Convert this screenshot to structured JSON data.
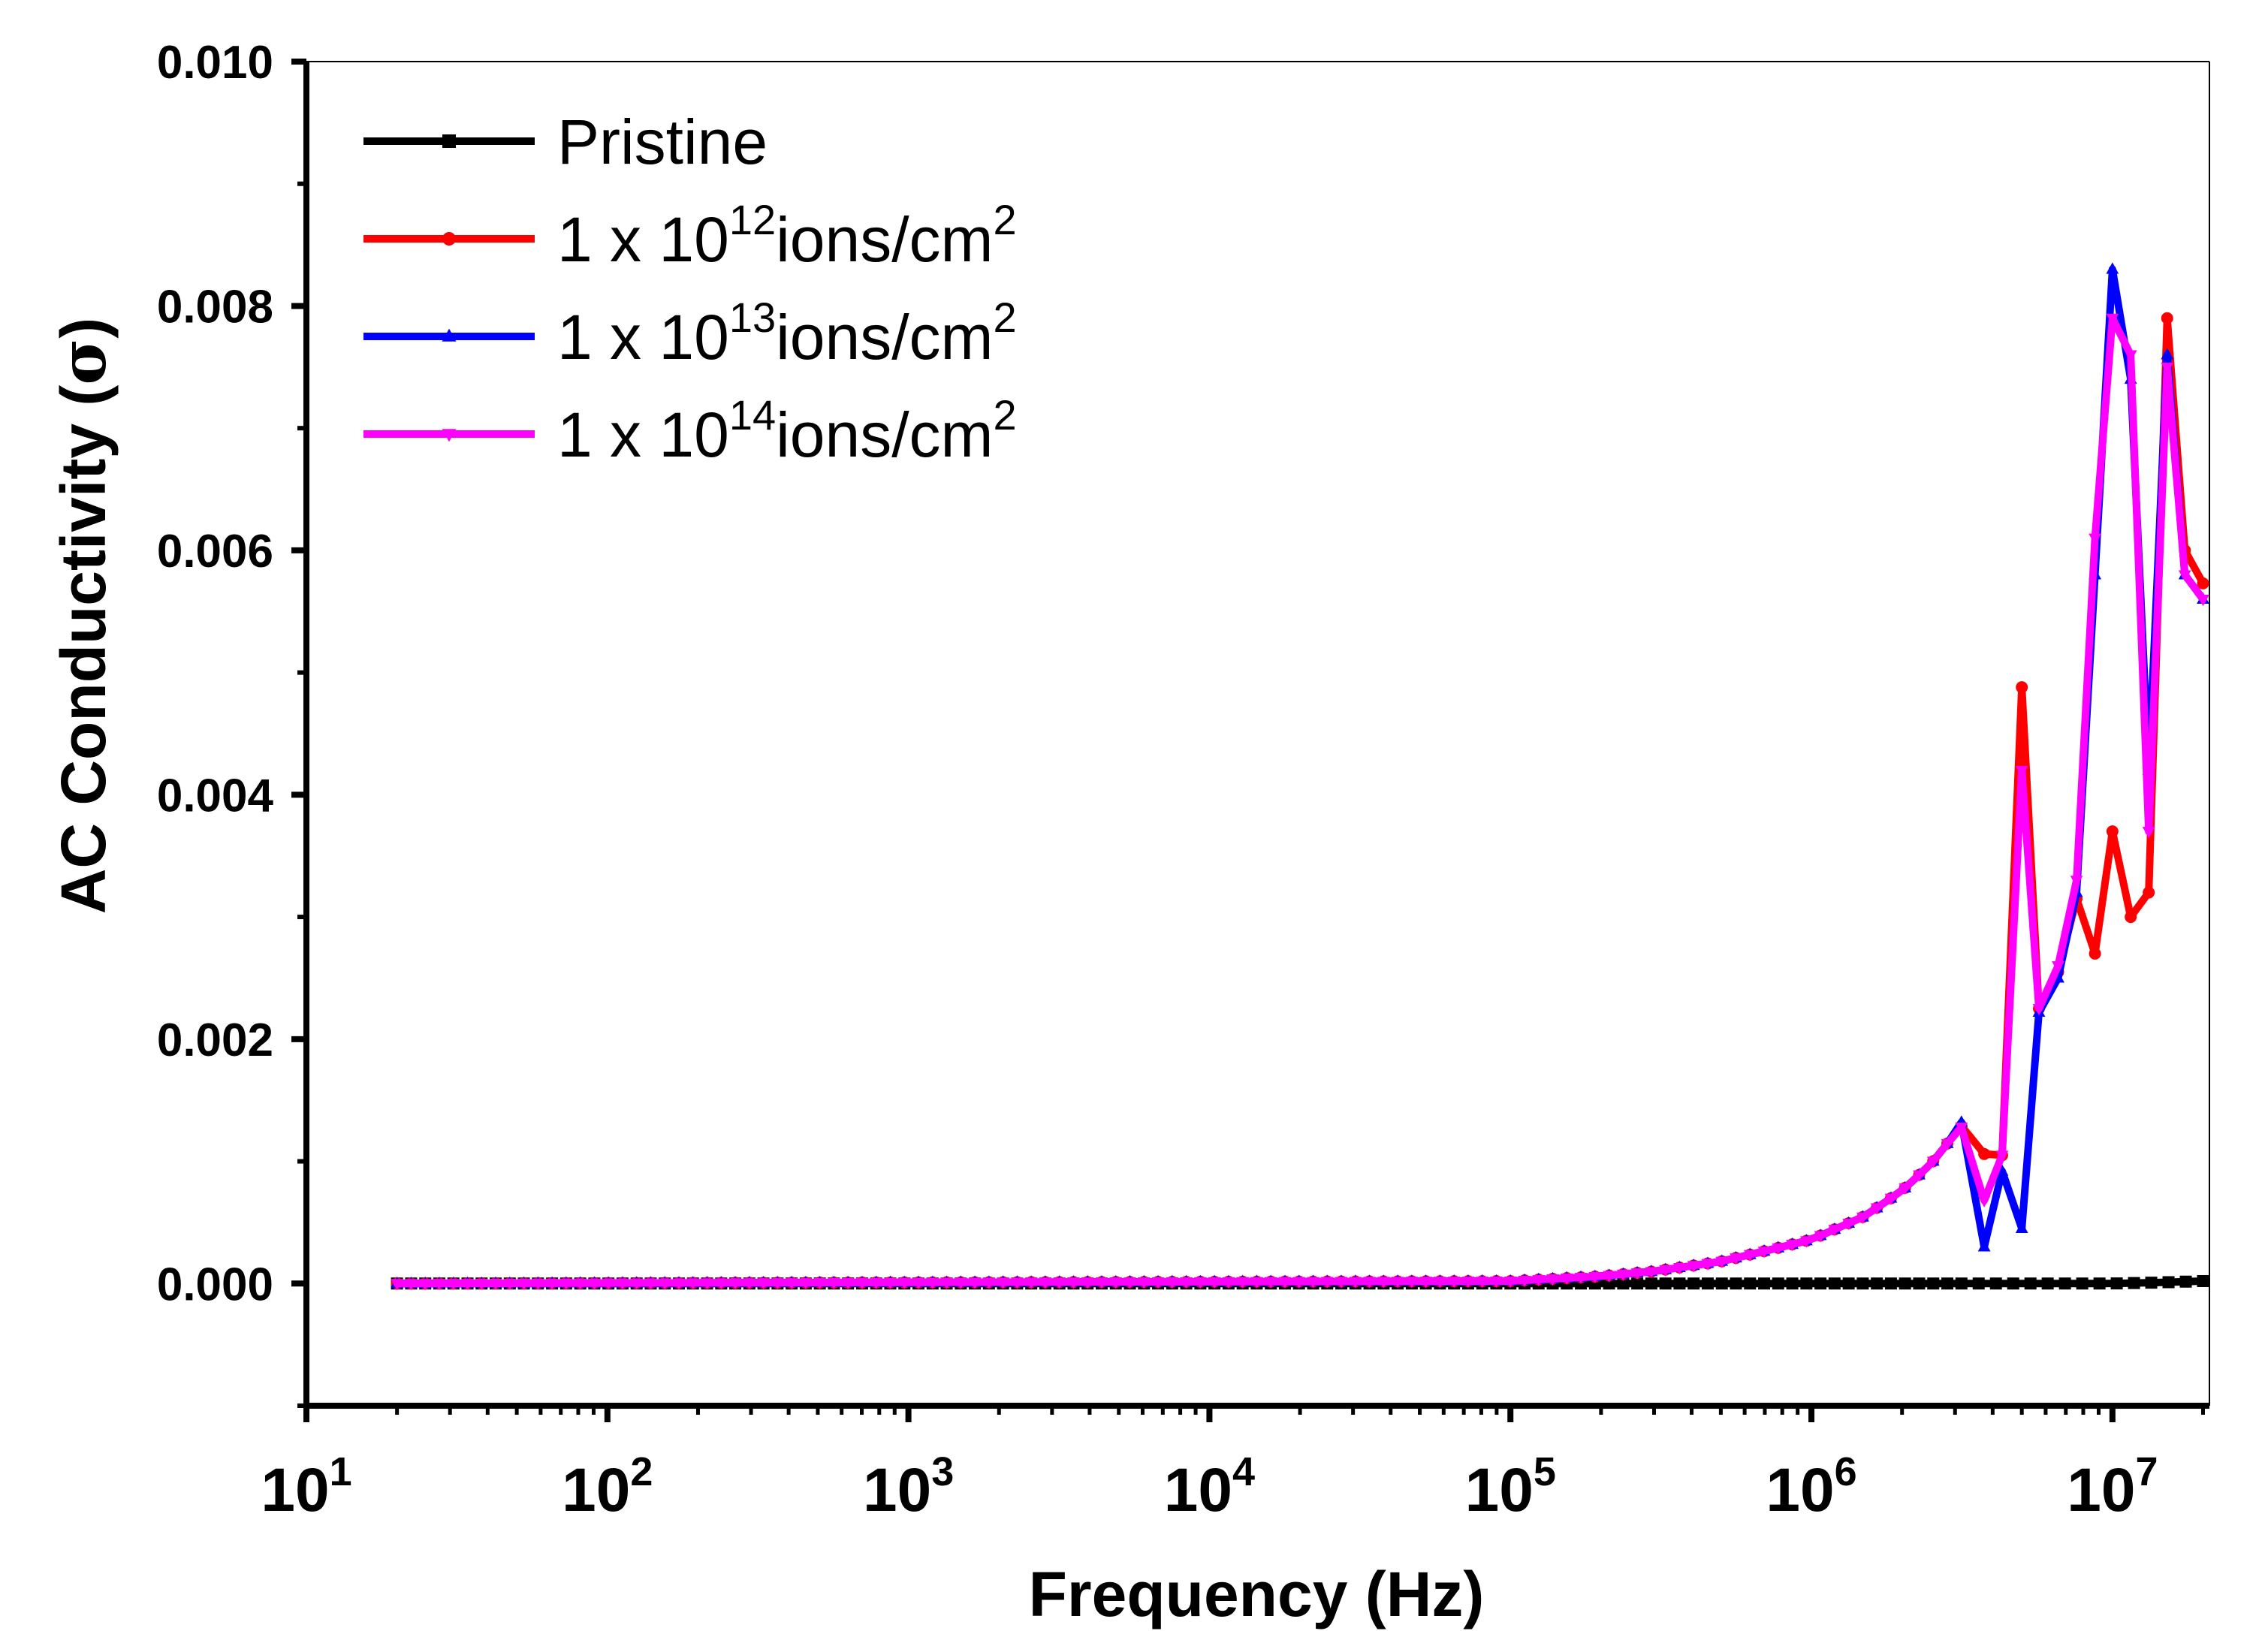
{
  "chart_data": {
    "type": "line",
    "xscale": "log",
    "xlabel": "Frequency (Hz)",
    "ylabel": "AC Conductivity (σ)",
    "ylabel_parts": [
      "AC Conductivity (",
      "σ",
      ")"
    ],
    "xlim": [
      10,
      21000000
    ],
    "ylim": [
      -0.001,
      0.01
    ],
    "x_tick_labels": [
      {
        "base": "10",
        "exp": "1",
        "value": 10
      },
      {
        "base": "10",
        "exp": "2",
        "value": 100
      },
      {
        "base": "10",
        "exp": "3",
        "value": 1000
      },
      {
        "base": "10",
        "exp": "4",
        "value": 10000
      },
      {
        "base": "10",
        "exp": "5",
        "value": 100000
      },
      {
        "base": "10",
        "exp": "6",
        "value": 1000000
      },
      {
        "base": "10",
        "exp": "7",
        "value": 10000000
      }
    ],
    "y_tick_labels": [
      "0.000",
      "0.002",
      "0.004",
      "0.006",
      "0.008",
      "0.010"
    ],
    "y_tick_values": [
      0,
      0.002,
      0.004,
      0.006,
      0.008,
      0.01
    ],
    "legend_position": "top-left",
    "series": [
      {
        "name": "Pristine",
        "legend": {
          "prefix": "Pristine",
          "exp": "",
          "suffix": "",
          "sup2": ""
        },
        "color": "#000000",
        "marker": "square",
        "tail": [
          [
            3500000,
            0.0
          ],
          [
            5000000,
            0.0
          ],
          [
            10000000,
            0.0
          ],
          [
            15000000,
            1e-05
          ],
          [
            20000000,
            2e-05
          ]
        ]
      },
      {
        "name": "1 x 10^12ions/cm^2",
        "legend": {
          "prefix": "1 x 10",
          "exp": "12",
          "suffix": "ions/cm",
          "sup2": "2"
        },
        "color": "#ff0000",
        "marker": "circle",
        "tail": [
          [
            3150000,
            0.00129
          ],
          [
            3750000,
            0.00106
          ],
          [
            4300000,
            0.00105
          ],
          [
            5000000,
            0.00488
          ],
          [
            5700000,
            0.00225
          ],
          [
            6600000,
            0.00255
          ],
          [
            7600000,
            0.00315
          ],
          [
            8750000,
            0.0027
          ],
          [
            10000000,
            0.0037
          ],
          [
            11500000,
            0.003
          ],
          [
            13200000,
            0.0032
          ],
          [
            15200000,
            0.0079
          ],
          [
            17400000,
            0.006
          ],
          [
            20000000,
            0.00573
          ]
        ]
      },
      {
        "name": "1 x 10^13ions/cm^2",
        "legend": {
          "prefix": "1 x 10",
          "exp": "13",
          "suffix": "ions/cm",
          "sup2": "2"
        },
        "color": "#0000ff",
        "marker": "triangle-up",
        "tail": [
          [
            3150000,
            0.00132
          ],
          [
            3750000,
            0.0003
          ],
          [
            4300000,
            0.00092
          ],
          [
            5000000,
            0.00045
          ],
          [
            5700000,
            0.00222
          ],
          [
            6600000,
            0.0025
          ],
          [
            7600000,
            0.0032
          ],
          [
            8750000,
            0.0058
          ],
          [
            10000000,
            0.0083
          ],
          [
            11500000,
            0.0074
          ],
          [
            13200000,
            0.0042
          ],
          [
            15200000,
            0.0076
          ],
          [
            17400000,
            0.0058
          ],
          [
            20000000,
            0.0056
          ]
        ]
      },
      {
        "name": "1 x 10^14ions/cm^2",
        "legend": {
          "prefix": "1 x 10",
          "exp": "14",
          "suffix": "ions/cm",
          "sup2": "2"
        },
        "color": "#ff00ff",
        "marker": "triangle-down",
        "tail": [
          [
            3150000,
            0.00128
          ],
          [
            3750000,
            0.00068
          ],
          [
            4300000,
            0.00105
          ],
          [
            5000000,
            0.0042
          ],
          [
            5700000,
            0.00225
          ],
          [
            6600000,
            0.0026
          ],
          [
            7600000,
            0.0033
          ],
          [
            8750000,
            0.0061
          ],
          [
            10000000,
            0.0079
          ],
          [
            11500000,
            0.0076
          ],
          [
            13200000,
            0.0037
          ],
          [
            15200000,
            0.0075
          ],
          [
            17400000,
            0.0058
          ],
          [
            20000000,
            0.0056
          ]
        ]
      }
    ],
    "rise_curve": {
      "description": "shared irradiated-sample dispersion below 3.15 MHz",
      "points": [
        [
          20,
          0.0
        ],
        [
          100000,
          2e-05
        ],
        [
          200000,
          6e-05
        ],
        [
          300000,
          0.0001
        ],
        [
          500000,
          0.00018
        ],
        [
          800000,
          0.0003
        ],
        [
          1000000,
          0.00036
        ],
        [
          1500000,
          0.00055
        ],
        [
          2000000,
          0.00076
        ],
        [
          2500000,
          0.00098
        ],
        [
          3150000,
          0.00129
        ]
      ]
    }
  }
}
